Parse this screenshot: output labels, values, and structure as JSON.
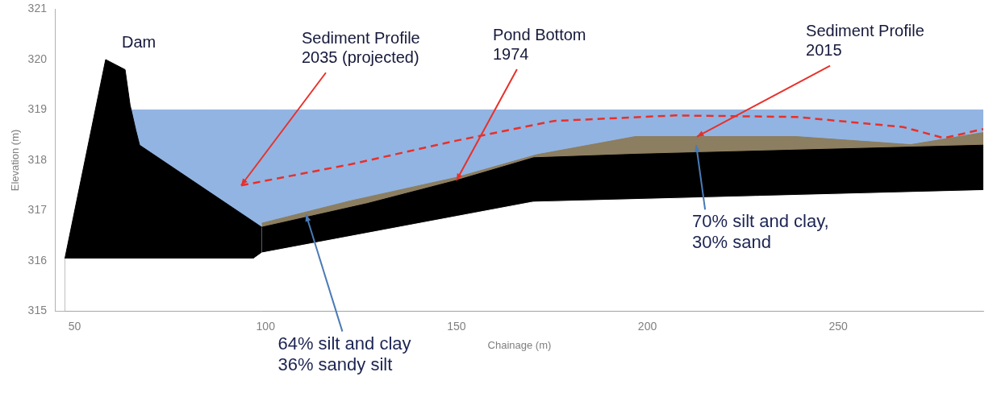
{
  "chart_data": {
    "type": "area",
    "x_label": "Chainage (m)",
    "y_label": "Elevation (m)",
    "xlim": [
      45,
      288
    ],
    "xticks": [
      50,
      100,
      150,
      200,
      250
    ],
    "ylim": [
      315,
      321
    ],
    "yticks": [
      315,
      316,
      317,
      318,
      319,
      320,
      321
    ],
    "grid": false,
    "series": [
      {
        "type": "area",
        "color": "#92b4e2",
        "x": [
          64.5,
          288
        ],
        "values": [
          319.0,
          319.0
        ]
      },
      {
        "name": "Sediment Profile\n2015",
        "type": "area",
        "color": "#8c7e60",
        "x": [
          99,
          122,
          150,
          171,
          196.8,
          213,
          239,
          269,
          288
        ],
        "values": [
          316.75,
          317.19,
          317.66,
          318.11,
          318.47,
          318.47,
          318.47,
          318.31,
          318.55
        ]
      },
      {
        "name": "Dam",
        "type": "area",
        "color": "#000000",
        "x": [
          47.4,
          58.1,
          63.2,
          64.5,
          66,
          67,
          99
        ],
        "values": [
          316.04,
          320.0,
          319.8,
          319.1,
          318.6,
          318.3,
          316.67
        ]
      },
      {
        "name": "Pond Bottom\n1974",
        "type": "area",
        "color": "#000000",
        "x": [
          99,
          126.6,
          150,
          170.2,
          196.8,
          288
        ],
        "values": [
          316.67,
          317.14,
          317.6,
          318.05,
          318.12,
          318.3
        ]
      },
      {
        "type": "area",
        "color": "#ffffff",
        "x": [
          47.4,
          96.8,
          99,
          170,
          288
        ],
        "values": [
          316.04,
          316.04,
          316.16,
          317.17,
          317.4
        ]
      },
      {
        "name": "Sediment Profile\n2035 (projected)",
        "type": "line",
        "color": "#e8302a",
        "line_style": "dashed",
        "x": [
          93.6,
          122.3,
          150,
          175.5,
          207.4,
          239,
          267,
          277.7,
          288
        ],
        "values": [
          317.5,
          317.92,
          318.39,
          318.78,
          318.89,
          318.86,
          318.66,
          318.44,
          318.62
        ]
      }
    ],
    "annotations": [
      {
        "text": "64% silt and clay\n36% sandy silt",
        "x": 110.6,
        "y": 316.92
      },
      {
        "text": "70% silt and clay,\n30% sand",
        "x": 212.8,
        "y": 318.3
      }
    ]
  }
}
